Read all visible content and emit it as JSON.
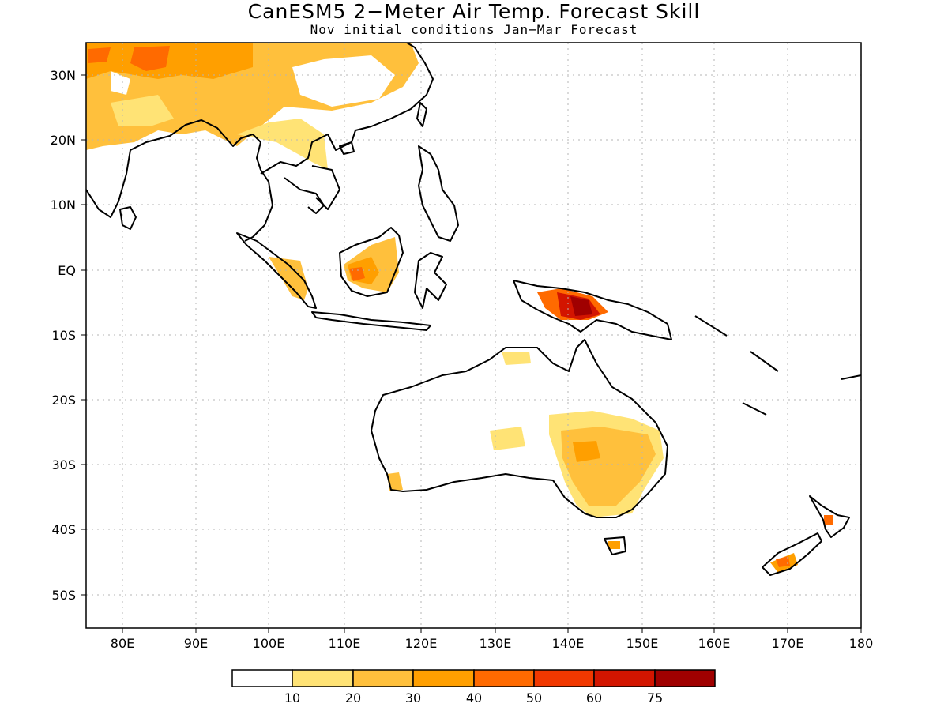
{
  "title": "CanESM5 2−Meter Air Temp. Forecast Skill",
  "subtitle": "Nov initial conditions  Jan−Mar Forecast",
  "map": {
    "lon_range": [
      75,
      180
    ],
    "lat_range": [
      -55,
      35
    ],
    "lon_labels": [
      "80E",
      "90E",
      "100E",
      "110E",
      "120E",
      "130E",
      "140E",
      "150E",
      "160E",
      "170E",
      "180"
    ],
    "lat_labels": [
      "30N",
      "20N",
      "10N",
      "EQ",
      "10S",
      "20S",
      "30S",
      "40S",
      "50S"
    ],
    "grid": true
  },
  "legend": {
    "colors": [
      "#ffffff",
      "#ffe375",
      "#ffc03c",
      "#ff9f00",
      "#ff6a00",
      "#f23800",
      "#d31500",
      "#a00000"
    ],
    "labels": [
      "10",
      "20",
      "30",
      "40",
      "50",
      "60",
      "75"
    ]
  }
}
